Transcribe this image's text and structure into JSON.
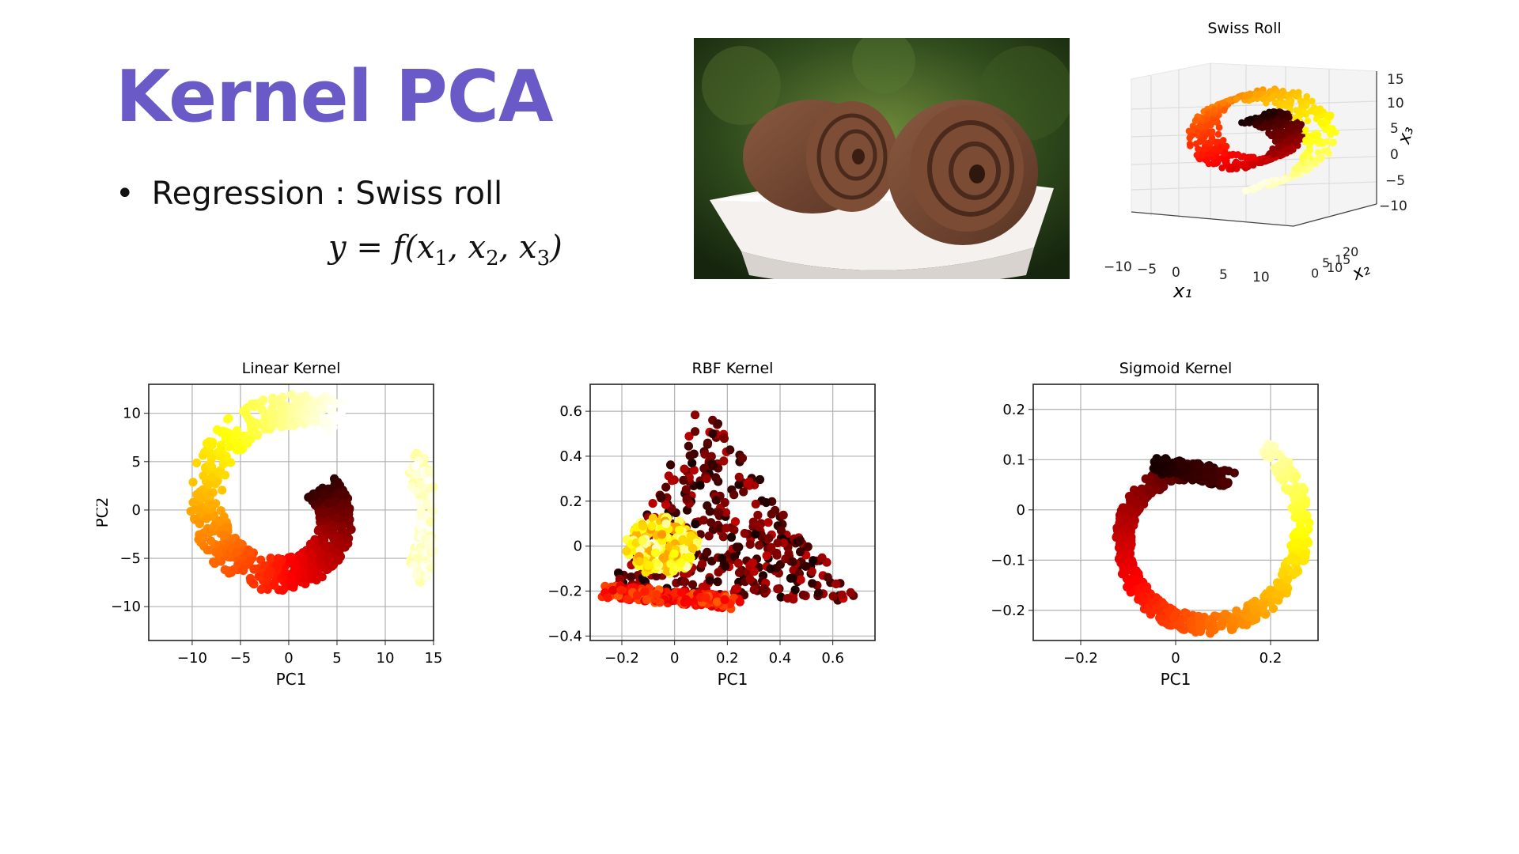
{
  "slide": {
    "title": "Kernel PCA",
    "bullet_marker": "•",
    "bullet_text": "Regression : Swiss roll",
    "equation": {
      "lhs": "y = f(",
      "v1": "x",
      "s1": "1",
      "c1": ", ",
      "v2": "x",
      "s2": "2",
      "c2": ", ",
      "v3": "x",
      "s3": "3",
      "rhs": ")"
    }
  },
  "photo": {
    "subject": "swiss-roll-cake-photo"
  },
  "swiss_roll_3d": {
    "title": "Swiss Roll",
    "x1_label": "x₁",
    "x2_label": "x₂",
    "x3_label": "x₃",
    "x1_ticks": [
      "−10",
      "−5",
      "0",
      "5",
      "10"
    ],
    "x2_ticks": [
      "0",
      "5",
      "10",
      "15",
      "20"
    ],
    "x3_ticks": [
      "15",
      "10",
      "5",
      "0",
      "−5",
      "−10"
    ]
  },
  "colors": {
    "accent": "#6a5ac8",
    "colormap": "hot"
  },
  "chart_data": [
    {
      "type": "scatter",
      "title": "Linear Kernel",
      "xlabel": "PC1",
      "ylabel": "PC2",
      "xlim": [
        -14.5,
        15
      ],
      "ylim": [
        -13.5,
        13
      ],
      "xticks": [
        -10,
        -5,
        0,
        5,
        10,
        15
      ],
      "yticks": [
        -10,
        -5,
        0,
        5,
        10
      ],
      "grid": true,
      "shape": {
        "spiral_center": [
          0,
          0
        ],
        "outer_radius": 12,
        "inner_radius": 5,
        "tail_arc_center": [
          11.5,
          -1
        ],
        "color_order": "dark core to light outer arc"
      }
    },
    {
      "type": "scatter",
      "title": "RBF Kernel",
      "xlabel": "PC1",
      "ylabel": "",
      "xlim": [
        -0.32,
        0.76
      ],
      "ylim": [
        -0.42,
        0.72
      ],
      "xticks": [
        -0.2,
        0.0,
        0.2,
        0.4,
        0.6
      ],
      "yticks": [
        -0.4,
        -0.2,
        0.0,
        0.2,
        0.4,
        0.6
      ],
      "grid": true,
      "shape": {
        "triangle_vertices": [
          [
            -0.25,
            -0.2
          ],
          [
            0.1,
            0.65
          ],
          [
            0.7,
            -0.25
          ]
        ],
        "light_cluster_center": [
          -0.05,
          0.0
        ],
        "color_order": "yellow cluster at left, red band, dark spread"
      }
    },
    {
      "type": "scatter",
      "title": "Sigmoid Kernel",
      "xlabel": "PC1",
      "ylabel": "",
      "xlim": [
        -0.3,
        0.3
      ],
      "ylim": [
        -0.26,
        0.25
      ],
      "xticks": [
        -0.2,
        0.0,
        0.2
      ],
      "yticks": [
        -0.2,
        -0.1,
        0.0,
        0.1,
        0.2
      ],
      "grid": true,
      "shape": {
        "ring_center": [
          0.04,
          -0.06
        ],
        "ring_radius": 0.13,
        "outer_arc_radius": 0.21,
        "color_order": "dark top, red bottom, orange right, yellow to light left arc"
      }
    }
  ]
}
